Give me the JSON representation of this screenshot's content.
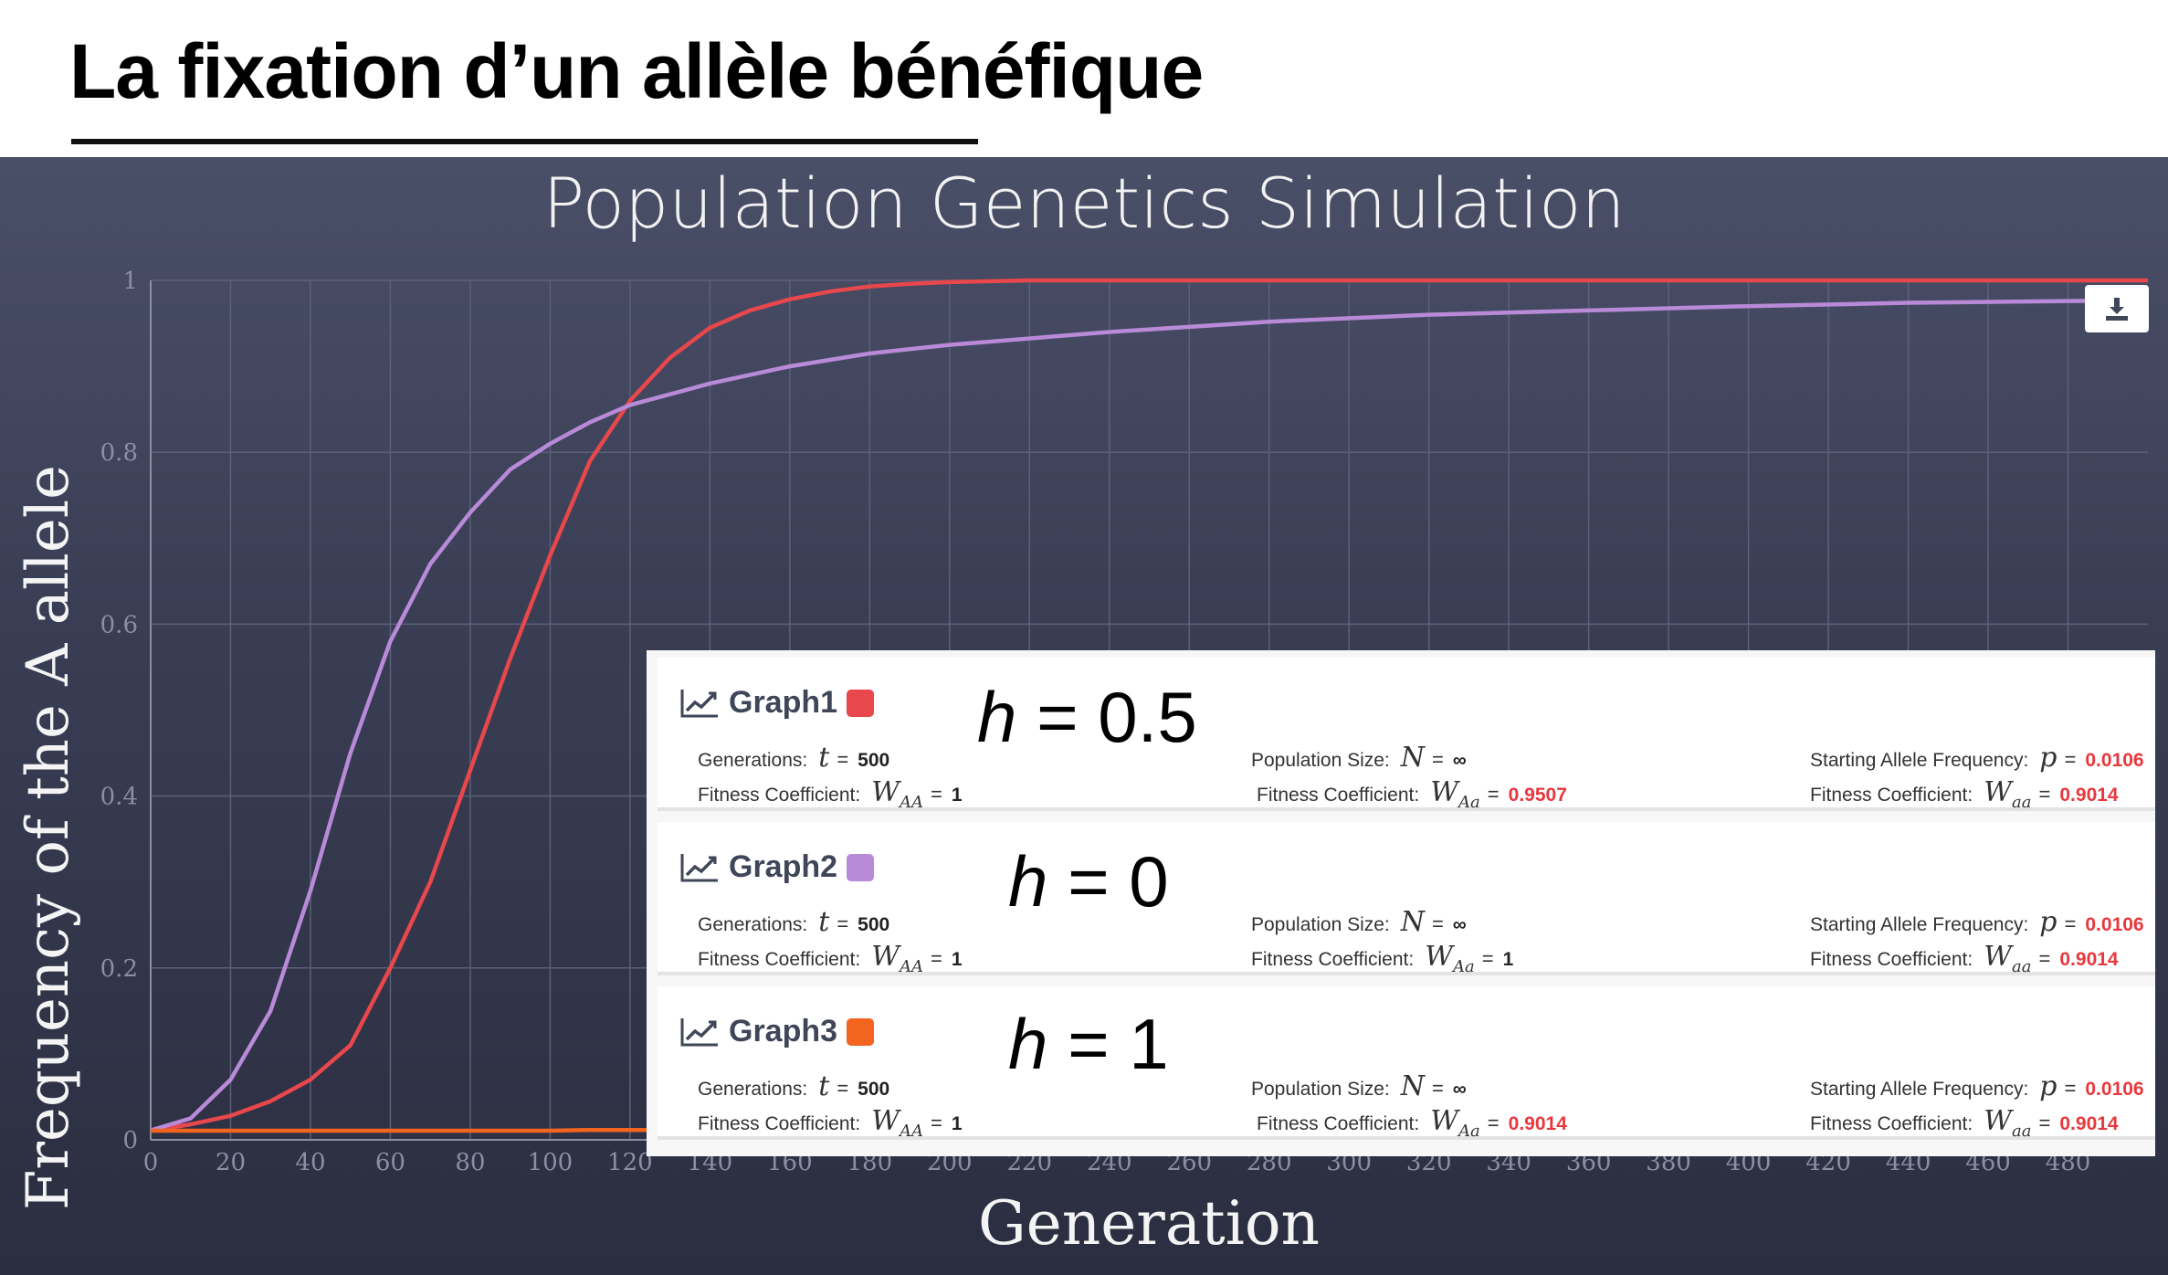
{
  "slide": {
    "title": "La fixation d’un allèle bénéfique"
  },
  "simulation": {
    "title": "Population Genetics Simulation",
    "download_icon": "download-icon"
  },
  "chart_data": {
    "type": "line",
    "xlabel": "Generation",
    "ylabel": "Frequency of the A allele",
    "xlim": [
      0,
      500
    ],
    "ylim": [
      0,
      1
    ],
    "x_ticks": [
      0,
      20,
      40,
      60,
      80,
      100,
      120,
      140,
      160,
      180,
      200,
      220,
      240,
      260,
      280,
      300,
      320,
      340,
      360,
      380,
      400,
      420,
      440,
      460,
      480
    ],
    "y_ticks": [
      0,
      0.2,
      0.4,
      0.6,
      0.8,
      1
    ],
    "y_tick_labels": [
      "0",
      "0.2",
      "0.4",
      "0.6",
      "0.8",
      "1"
    ],
    "grid": true,
    "series": [
      {
        "name": "Graph1",
        "color": "#e8474c",
        "points": [
          [
            0,
            0.011
          ],
          [
            10,
            0.018
          ],
          [
            20,
            0.028
          ],
          [
            30,
            0.045
          ],
          [
            40,
            0.07
          ],
          [
            50,
            0.11
          ],
          [
            60,
            0.2
          ],
          [
            70,
            0.3
          ],
          [
            80,
            0.43
          ],
          [
            90,
            0.56
          ],
          [
            100,
            0.68
          ],
          [
            110,
            0.79
          ],
          [
            120,
            0.86
          ],
          [
            130,
            0.91
          ],
          [
            140,
            0.945
          ],
          [
            150,
            0.965
          ],
          [
            160,
            0.978
          ],
          [
            170,
            0.987
          ],
          [
            180,
            0.993
          ],
          [
            190,
            0.996
          ],
          [
            200,
            0.998
          ],
          [
            220,
            1.0
          ],
          [
            500,
            1.0
          ]
        ]
      },
      {
        "name": "Graph2",
        "color": "#b88ad8",
        "points": [
          [
            0,
            0.011
          ],
          [
            10,
            0.025
          ],
          [
            20,
            0.07
          ],
          [
            30,
            0.15
          ],
          [
            40,
            0.29
          ],
          [
            50,
            0.45
          ],
          [
            60,
            0.58
          ],
          [
            70,
            0.67
          ],
          [
            80,
            0.73
          ],
          [
            90,
            0.78
          ],
          [
            100,
            0.81
          ],
          [
            110,
            0.835
          ],
          [
            120,
            0.855
          ],
          [
            140,
            0.88
          ],
          [
            160,
            0.9
          ],
          [
            180,
            0.915
          ],
          [
            200,
            0.925
          ],
          [
            240,
            0.94
          ],
          [
            280,
            0.952
          ],
          [
            320,
            0.96
          ],
          [
            360,
            0.965
          ],
          [
            400,
            0.97
          ],
          [
            440,
            0.974
          ],
          [
            480,
            0.976
          ],
          [
            500,
            0.977
          ]
        ]
      },
      {
        "name": "Graph3",
        "color": "#f2641f",
        "points": [
          [
            0,
            0.0106
          ],
          [
            100,
            0.0106
          ],
          [
            110,
            0.0115
          ],
          [
            225,
            0.0115
          ],
          [
            230,
            0.0125
          ],
          [
            315,
            0.0125
          ],
          [
            320,
            0.0145
          ],
          [
            380,
            0.0145
          ],
          [
            385,
            0.0165
          ],
          [
            435,
            0.0165
          ],
          [
            440,
            0.019
          ],
          [
            475,
            0.019
          ],
          [
            480,
            0.022
          ],
          [
            500,
            0.022
          ]
        ]
      }
    ]
  },
  "legend": {
    "cards": [
      {
        "name": "Graph1",
        "color": "#e8474c",
        "h_label": "= 0.5",
        "generations_label": "Generations:",
        "generations_value": "500",
        "pop_label": "Population Size:",
        "pop_value": "∞",
        "start_label": "Starting Allele Frequency:",
        "start_value": "0.0106",
        "fit_label": "Fitness Coefficient:",
        "waa_value": "1",
        "wAa_value": "0.9507",
        "waa_lower_value": "0.9014"
      },
      {
        "name": "Graph2",
        "color": "#b88ad8",
        "h_label": "= 0",
        "generations_label": "Generations:",
        "generations_value": "500",
        "pop_label": "Population Size:",
        "pop_value": "∞",
        "start_label": "Starting Allele Frequency:",
        "start_value": "0.0106",
        "fit_label": "Fitness Coefficient:",
        "waa_value": "1",
        "wAa_value": "1",
        "waa_lower_value": "0.9014"
      },
      {
        "name": "Graph3",
        "color": "#f2641f",
        "h_label": "= 1",
        "generations_label": "Generations:",
        "generations_value": "500",
        "pop_label": "Population Size:",
        "pop_value": "∞",
        "start_label": "Starting Allele Frequency:",
        "start_value": "0.0106",
        "fit_label": "Fitness Coefficient:",
        "waa_value": "1",
        "wAa_value": "0.9014",
        "waa_lower_value": "0.9014"
      }
    ]
  }
}
